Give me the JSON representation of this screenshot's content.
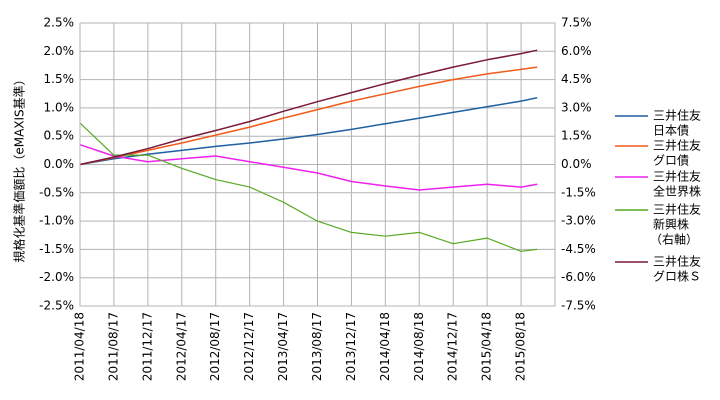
{
  "chart_data": {
    "type": "line",
    "ylabel": "規格化基準価額比（eMAXIS基準）",
    "y_left": {
      "ylim": [
        -0.025,
        0.025
      ],
      "ticks": [
        0.025,
        0.02,
        0.015,
        0.01,
        0.005,
        0.0,
        -0.005,
        -0.01,
        -0.015,
        -0.02,
        -0.025
      ],
      "tick_labels": [
        "2.5%",
        "2.0%",
        "1.5%",
        "1.0%",
        "0.5%",
        "0.0%",
        "-0.5%",
        "-1.0%",
        "-1.5%",
        "-2.0%",
        "-2.5%"
      ]
    },
    "y_right": {
      "ylim": [
        -0.075,
        0.075
      ],
      "ticks": [
        0.075,
        0.06,
        0.045,
        0.03,
        0.015,
        0.0,
        -0.015,
        -0.03,
        -0.045,
        -0.06,
        -0.075
      ],
      "tick_labels": [
        "7.5%",
        "6.0%",
        "4.5%",
        "3.0%",
        "1.5%",
        "0.0%",
        "-1.5%",
        "-3.0%",
        "-4.5%",
        "-6.0%",
        "-7.5%"
      ]
    },
    "x_tick_labels": [
      "2011/04/18",
      "2011/08/17",
      "2011/12/17",
      "2012/04/17",
      "2012/08/17",
      "2012/12/17",
      "2013/04/17",
      "2013/08/17",
      "2013/12/17",
      "2014/04/18",
      "2014/08/18",
      "2014/12/17",
      "2015/04/18",
      "2015/08/18"
    ],
    "grid": true,
    "legend_position": "right",
    "series": [
      {
        "name": "三井住友\n日本債",
        "color": "#1f5fa0",
        "axis": "left",
        "x": [
          "2011/04/18",
          "2011/08/17",
          "2011/12/17",
          "2012/04/17",
          "2012/08/17",
          "2012/12/17",
          "2013/04/17",
          "2013/08/17",
          "2013/12/17",
          "2014/04/18",
          "2014/08/18",
          "2014/12/17",
          "2015/04/18",
          "2015/08/18",
          "2015/10/15"
        ],
        "values": [
          0.0,
          0.001,
          0.0018,
          0.0025,
          0.0032,
          0.0038,
          0.0045,
          0.0053,
          0.0062,
          0.0072,
          0.0082,
          0.0092,
          0.0102,
          0.0112,
          0.0118
        ]
      },
      {
        "name": "三井住友\nグロ債",
        "color": "#f25a1a",
        "axis": "left",
        "x": [
          "2011/04/18",
          "2011/08/17",
          "2011/12/17",
          "2012/04/17",
          "2012/08/17",
          "2012/12/17",
          "2013/04/17",
          "2013/08/17",
          "2013/12/17",
          "2014/04/18",
          "2014/08/18",
          "2014/12/17",
          "2015/04/18",
          "2015/08/18",
          "2015/10/15"
        ],
        "values": [
          0.0,
          0.0012,
          0.0025,
          0.0038,
          0.0052,
          0.0066,
          0.0082,
          0.0097,
          0.0112,
          0.0125,
          0.0138,
          0.015,
          0.016,
          0.0168,
          0.0172
        ]
      },
      {
        "name": "三井住友\n全世界株",
        "color": "#ee22ee",
        "axis": "left",
        "x": [
          "2011/04/18",
          "2011/08/17",
          "2011/12/17",
          "2012/04/17",
          "2012/08/17",
          "2012/12/17",
          "2013/04/17",
          "2013/08/17",
          "2013/12/17",
          "2014/04/18",
          "2014/08/18",
          "2014/12/17",
          "2015/04/18",
          "2015/08/18",
          "2015/10/15"
        ],
        "values": [
          0.0035,
          0.0015,
          0.0005,
          0.001,
          0.0015,
          0.0005,
          -0.0005,
          -0.0015,
          -0.003,
          -0.0038,
          -0.0045,
          -0.004,
          -0.0035,
          -0.004,
          -0.0035
        ]
      },
      {
        "name": "三井住友\n新興株\n（右軸）",
        "color": "#55aa22",
        "axis": "right",
        "x": [
          "2011/04/18",
          "2011/08/17",
          "2011/12/17",
          "2012/04/17",
          "2012/08/17",
          "2012/12/17",
          "2013/04/17",
          "2013/08/17",
          "2013/12/17",
          "2014/04/18",
          "2014/08/18",
          "2014/12/17",
          "2015/04/18",
          "2015/08/18",
          "2015/10/15"
        ],
        "values": [
          0.022,
          0.005,
          0.005,
          -0.002,
          -0.008,
          -0.012,
          -0.02,
          -0.03,
          -0.036,
          -0.038,
          -0.036,
          -0.042,
          -0.039,
          -0.046,
          -0.045
        ]
      },
      {
        "name": "三井住友\nグロ株Ｓ",
        "color": "#7a1a3a",
        "axis": "left",
        "x": [
          "2011/04/18",
          "2011/08/17",
          "2011/12/17",
          "2012/04/17",
          "2012/08/17",
          "2012/12/17",
          "2013/04/17",
          "2013/08/17",
          "2013/12/17",
          "2014/04/18",
          "2014/08/18",
          "2014/12/17",
          "2015/04/18",
          "2015/08/18",
          "2015/10/15"
        ],
        "values": [
          0.0,
          0.0013,
          0.0028,
          0.0045,
          0.006,
          0.0076,
          0.0094,
          0.0111,
          0.0127,
          0.0143,
          0.0158,
          0.0172,
          0.0185,
          0.0196,
          0.0202
        ]
      }
    ]
  }
}
